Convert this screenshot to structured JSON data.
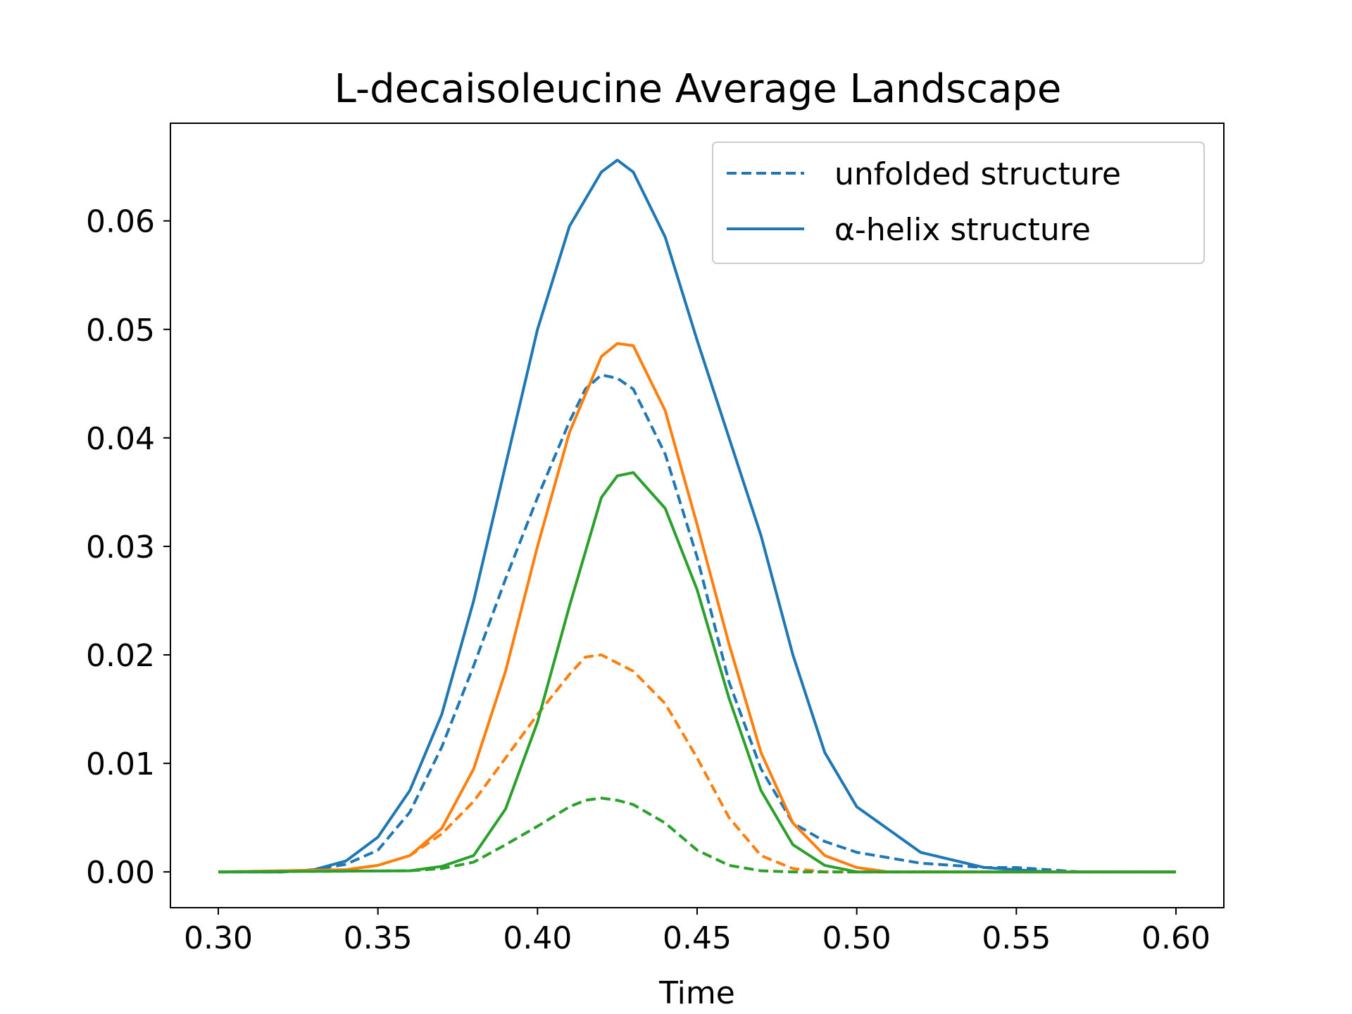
{
  "chart_data": {
    "type": "line",
    "title": "L-decaisoleucine Average Landscape",
    "xlabel": "Time",
    "ylabel": "",
    "xlim": [
      0.285,
      0.615
    ],
    "ylim": [
      -0.0033,
      0.069
    ],
    "xticks": [
      "0.30",
      "0.35",
      "0.40",
      "0.45",
      "0.50",
      "0.55",
      "0.60"
    ],
    "yticks": [
      "0.00",
      "0.01",
      "0.02",
      "0.03",
      "0.04",
      "0.05",
      "0.06"
    ],
    "grid": false,
    "legend_position": "upper right",
    "legend": [
      {
        "label": "unfolded structure",
        "style": "dashed",
        "color": "#1f77b4"
      },
      {
        "label": "α-helix structure",
        "style": "solid",
        "color": "#1f77b4"
      }
    ],
    "series": [
      {
        "color": "#1f77b4",
        "style": "dashed",
        "x": [
          0.3,
          0.32,
          0.33,
          0.34,
          0.35,
          0.36,
          0.37,
          0.38,
          0.39,
          0.4,
          0.41,
          0.415,
          0.42,
          0.425,
          0.43,
          0.44,
          0.45,
          0.46,
          0.47,
          0.48,
          0.49,
          0.5,
          0.52,
          0.54,
          0.55,
          0.56,
          0.57,
          0.6
        ],
        "y": [
          0.0,
          0.0,
          0.0002,
          0.0007,
          0.002,
          0.0055,
          0.0115,
          0.019,
          0.027,
          0.0345,
          0.0415,
          0.0445,
          0.0458,
          0.0455,
          0.0445,
          0.0385,
          0.029,
          0.0175,
          0.0095,
          0.0045,
          0.0028,
          0.0018,
          0.0008,
          0.0004,
          0.0004,
          0.0002,
          0.0,
          0.0
        ]
      },
      {
        "color": "#ff7f0e",
        "style": "dashed",
        "x": [
          0.3,
          0.34,
          0.35,
          0.36,
          0.37,
          0.38,
          0.39,
          0.4,
          0.41,
          0.415,
          0.42,
          0.43,
          0.44,
          0.45,
          0.46,
          0.47,
          0.48,
          0.49,
          0.5,
          0.6
        ],
        "y": [
          0.0,
          0.0002,
          0.0006,
          0.0015,
          0.0035,
          0.0065,
          0.0105,
          0.0145,
          0.0182,
          0.0198,
          0.02,
          0.0185,
          0.0155,
          0.0105,
          0.005,
          0.0015,
          0.0003,
          0.0,
          0.0,
          0.0
        ]
      },
      {
        "color": "#2ca02c",
        "style": "dashed",
        "x": [
          0.3,
          0.36,
          0.37,
          0.38,
          0.39,
          0.4,
          0.41,
          0.415,
          0.42,
          0.425,
          0.43,
          0.44,
          0.45,
          0.46,
          0.47,
          0.48,
          0.6
        ],
        "y": [
          0.0,
          0.0001,
          0.0003,
          0.0009,
          0.0025,
          0.0042,
          0.006,
          0.0066,
          0.0068,
          0.0066,
          0.0062,
          0.0045,
          0.002,
          0.0006,
          0.0001,
          0.0,
          0.0
        ]
      },
      {
        "color": "#1f77b4",
        "style": "solid",
        "x": [
          0.3,
          0.32,
          0.33,
          0.34,
          0.35,
          0.36,
          0.37,
          0.38,
          0.39,
          0.4,
          0.41,
          0.42,
          0.425,
          0.43,
          0.44,
          0.45,
          0.46,
          0.47,
          0.48,
          0.49,
          0.5,
          0.52,
          0.54,
          0.56,
          0.6
        ],
        "y": [
          0.0,
          0.0,
          0.0002,
          0.001,
          0.0032,
          0.0075,
          0.0145,
          0.025,
          0.0375,
          0.05,
          0.0595,
          0.0645,
          0.0656,
          0.0645,
          0.0585,
          0.049,
          0.04,
          0.031,
          0.02,
          0.011,
          0.006,
          0.0018,
          0.0004,
          0.0,
          0.0
        ]
      },
      {
        "color": "#ff7f0e",
        "style": "solid",
        "x": [
          0.3,
          0.34,
          0.35,
          0.36,
          0.37,
          0.38,
          0.39,
          0.4,
          0.41,
          0.42,
          0.425,
          0.43,
          0.44,
          0.45,
          0.46,
          0.47,
          0.48,
          0.49,
          0.5,
          0.51,
          0.6
        ],
        "y": [
          0.0,
          0.0002,
          0.0006,
          0.0015,
          0.004,
          0.0095,
          0.0185,
          0.03,
          0.0405,
          0.0475,
          0.0487,
          0.0485,
          0.0425,
          0.032,
          0.021,
          0.011,
          0.0045,
          0.0015,
          0.0004,
          0.0,
          0.0
        ]
      },
      {
        "color": "#2ca02c",
        "style": "solid",
        "x": [
          0.3,
          0.36,
          0.37,
          0.38,
          0.39,
          0.4,
          0.41,
          0.42,
          0.425,
          0.43,
          0.44,
          0.45,
          0.46,
          0.47,
          0.48,
          0.49,
          0.5,
          0.6
        ],
        "y": [
          0.0,
          0.0001,
          0.0005,
          0.0015,
          0.0058,
          0.0138,
          0.0245,
          0.0345,
          0.0365,
          0.0368,
          0.0335,
          0.026,
          0.016,
          0.0075,
          0.0025,
          0.0006,
          0.0,
          0.0
        ]
      }
    ]
  }
}
